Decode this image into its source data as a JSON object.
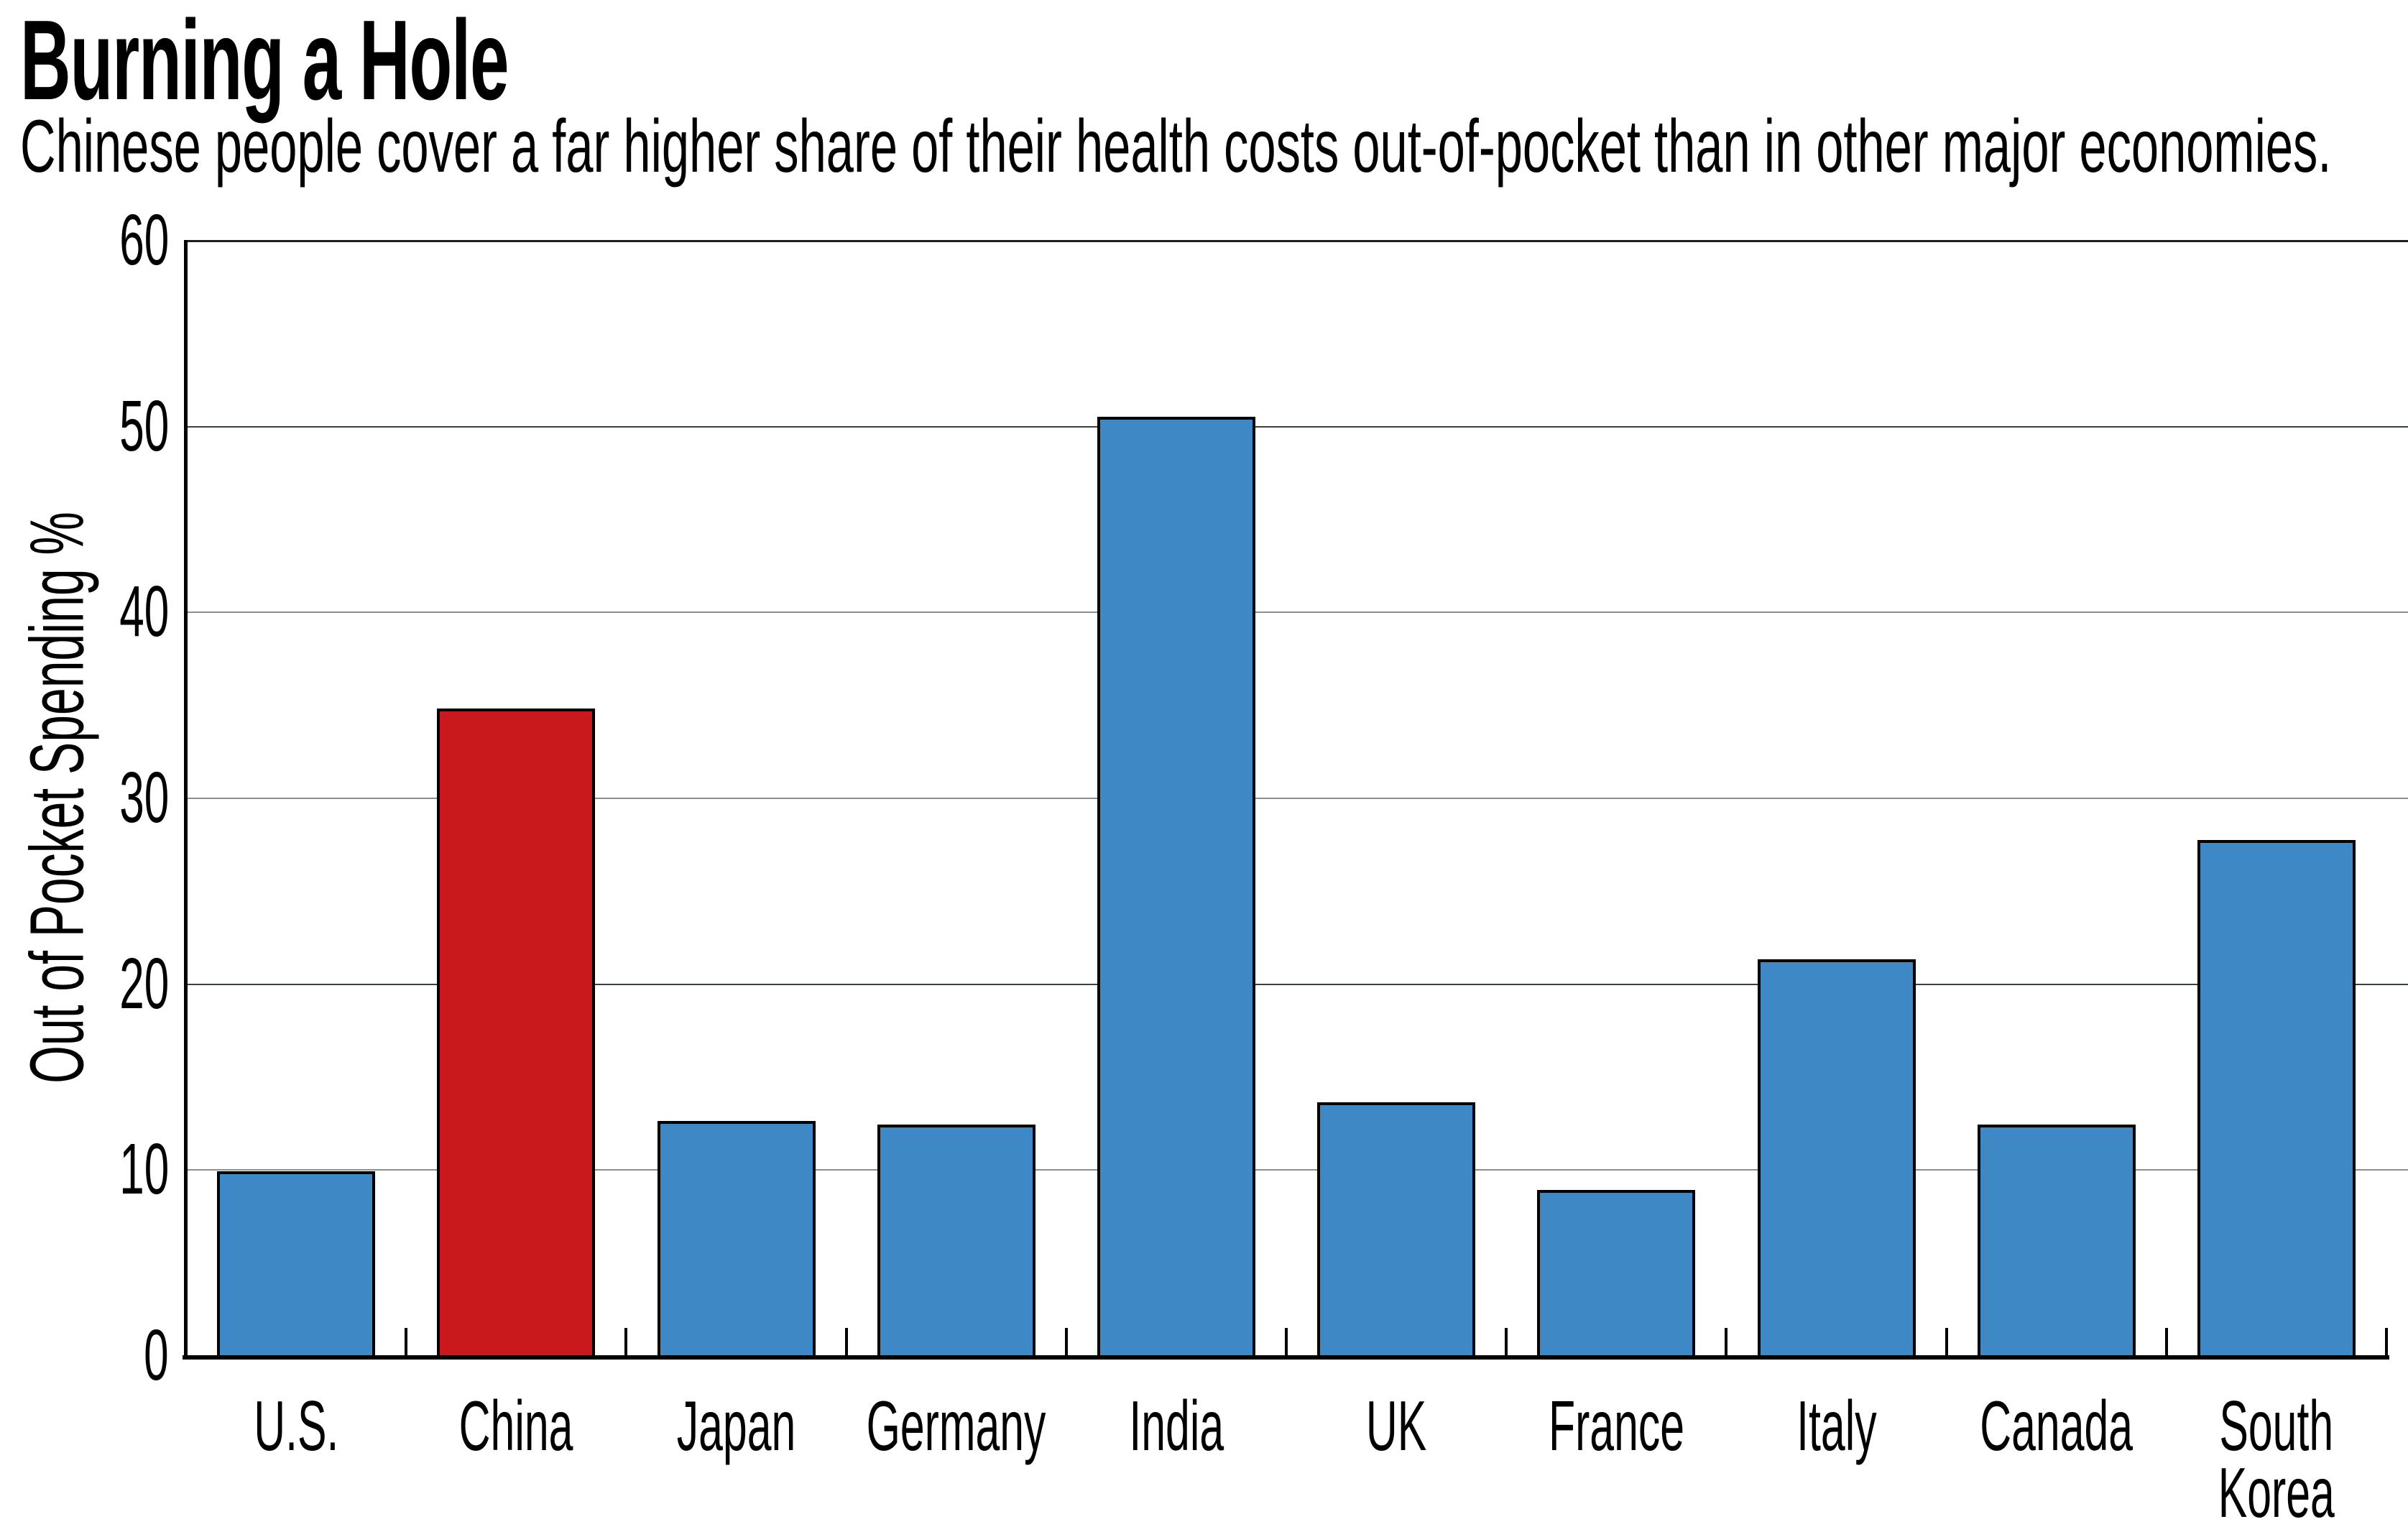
{
  "header": {
    "title": "Burning a Hole",
    "subtitle": "Chinese people cover a far higher share of their health costs out-of-pocket than in other major economies."
  },
  "chart_data": {
    "type": "bar",
    "title": "Burning a Hole",
    "subtitle": "Chinese people cover a far higher share of their health costs out-of-pocket than in other major economies.",
    "ylabel": "Out of Pocket Spending %",
    "xlabel": "",
    "ylim": [
      0,
      60
    ],
    "yticks": [
      0,
      10,
      20,
      30,
      40,
      50,
      60
    ],
    "grid": "horizontal",
    "legend": "none",
    "categories": [
      "U.S.",
      "China",
      "Japan",
      "Germany",
      "India",
      "UK",
      "France",
      "Italy",
      "Canada",
      "South Korea"
    ],
    "tick_labels": [
      "U.S.",
      "China",
      "Japan",
      "Germany",
      "India",
      "UK",
      "France",
      "Italy",
      "Canada",
      "South\nKorea"
    ],
    "values": [
      9.9,
      34.8,
      12.6,
      12.4,
      50.5,
      13.6,
      8.9,
      21.3,
      12.4,
      27.7
    ],
    "highlight_category": "China",
    "colors": {
      "bar": "#3d88c5",
      "highlight_bar": "#c9191d",
      "bar_border": "#000000",
      "grid_gray": "#8d8d8d",
      "grid_dark": "#394048",
      "axis": "#000000",
      "text": "#000000",
      "background": "#ffffff"
    },
    "dark_gridlines": [
      20,
      50
    ]
  }
}
